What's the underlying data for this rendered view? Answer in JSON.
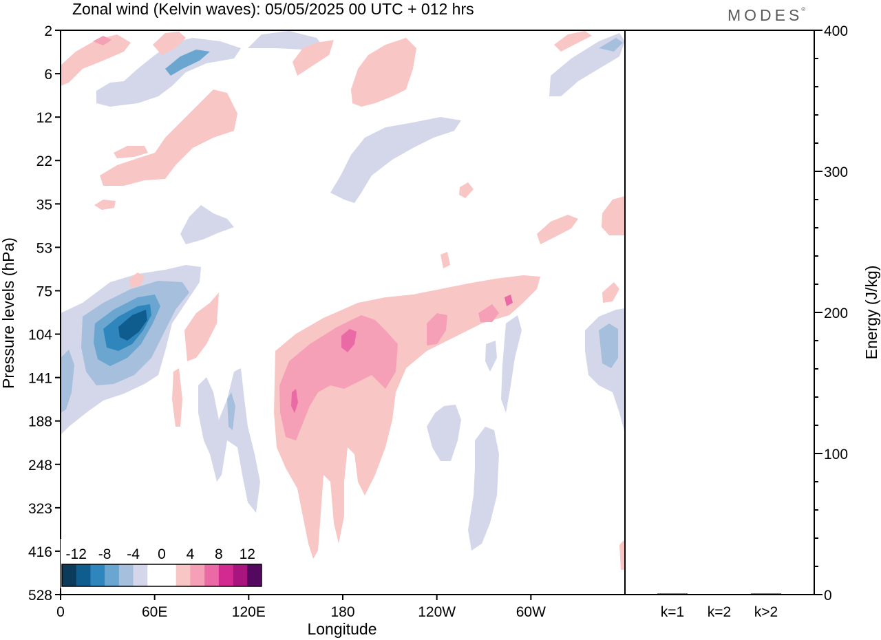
{
  "title": "Zonal wind (Kelvin waves):  05/05/2025  00 UTC  + 012 hrs",
  "brand": "MODES",
  "brand_mark": "®",
  "chart_data": [
    {
      "type": "heatmap",
      "title": "Zonal wind (Kelvin waves):  05/05/2025  00 UTC  + 012 hrs",
      "xlabel": "Longitude",
      "ylabel": "Pressure levels (hPa)",
      "x_ticks": [
        "0",
        "60E",
        "120E",
        "180",
        "120W",
        "60W"
      ],
      "y_ticks": [
        "2",
        "6",
        "12",
        "22",
        "35",
        "53",
        "75",
        "104",
        "141",
        "188",
        "248",
        "323",
        "416",
        "528"
      ],
      "y_scale": "categorical pressure levels, increasing downward",
      "colorbar": {
        "labels": [
          "-12",
          "-8",
          "-4",
          "0",
          "4",
          "8",
          "12"
        ],
        "colors": [
          "#0b3a5a",
          "#0f5c8e",
          "#2f86bd",
          "#6aa6cf",
          "#a6bfdc",
          "#d4d7ea",
          "#ffffff",
          "#ffffff",
          "#f8c6c4",
          "#f5a0b7",
          "#ea6aa5",
          "#d32a92",
          "#a8157f",
          "#55085f"
        ]
      },
      "features": [
        {
          "name": "negative anomaly",
          "lon_range": [
            "10E",
            "90E"
          ],
          "p_range": [
            75,
            188
          ],
          "min": -10
        },
        {
          "name": "positive anomaly",
          "lon_range": [
            "140E",
            "60W"
          ],
          "p_range": [
            75,
            416
          ],
          "max": 8
        },
        {
          "name": "negative anomaly",
          "lon_range": [
            "140W",
            "90W"
          ],
          "p_range": [
            141,
            416
          ],
          "min": -4
        }
      ]
    },
    {
      "type": "bar",
      "ylabel": "Energy (J/kg)",
      "categories": [
        "k=1",
        "k=2",
        "k>2"
      ],
      "values": [
        0.5,
        0,
        0.3
      ],
      "ylim": [
        0,
        400
      ],
      "y_ticks": [
        "0",
        "100",
        "200",
        "300",
        "400"
      ]
    }
  ]
}
